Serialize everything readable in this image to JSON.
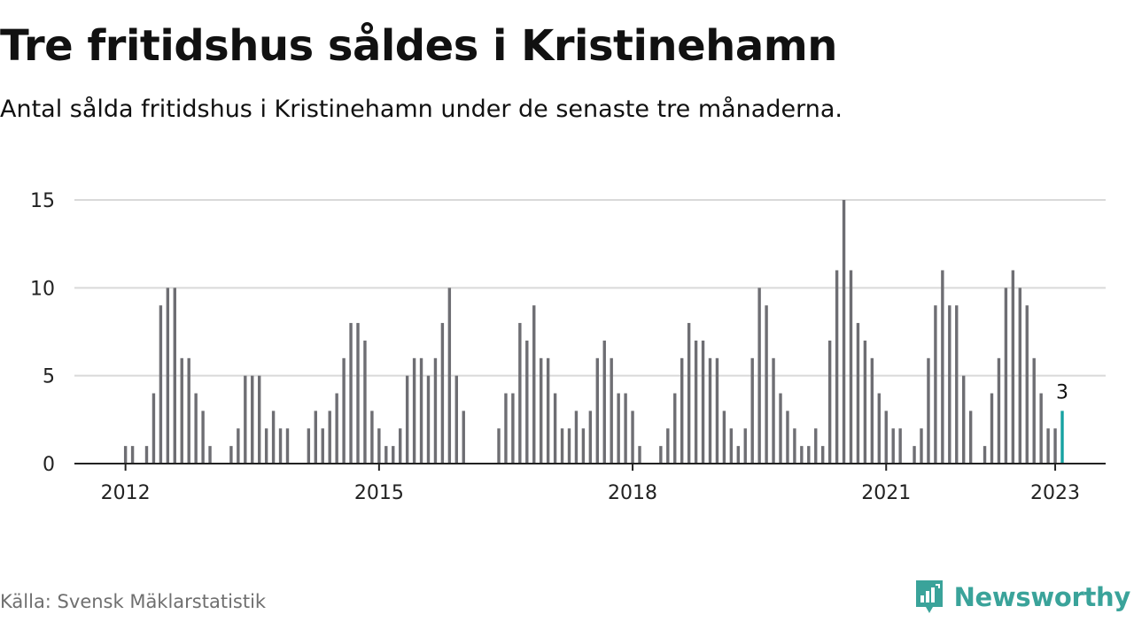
{
  "header": {
    "title": "Tre fritidshus såldes i Kristinehamn",
    "subtitle": "Antal sålda fritidshus i Kristinehamn under de senaste tre månaderna."
  },
  "footer": {
    "source": "Källa: Svensk Mäklarstatistik",
    "brand": "Newsworthy"
  },
  "colors": {
    "bar": "#6e6e73",
    "highlight": "#17a2a2",
    "grid": "#d9d9d9",
    "axis": "#222222",
    "brand": "#3aa39a"
  },
  "chart_data": {
    "type": "bar",
    "title": "Tre fritidshus såldes i Kristinehamn",
    "subtitle": "Antal sålda fritidshus i Kristinehamn under de senaste tre månaderna.",
    "xlabel": "",
    "ylabel": "",
    "x_start": "2011-12",
    "frequency": "monthly",
    "ylim": [
      0,
      15
    ],
    "yticks": [
      0,
      5,
      10,
      15
    ],
    "xticks": [
      {
        "label": "2012",
        "date": "2012-01"
      },
      {
        "label": "2015",
        "date": "2015-01"
      },
      {
        "label": "2018",
        "date": "2018-01"
      },
      {
        "label": "2021",
        "date": "2021-01"
      },
      {
        "label": "2023",
        "date": "2023-01"
      }
    ],
    "grid": true,
    "highlight_last": true,
    "last_value_label": "3",
    "values": [
      0,
      1,
      1,
      0,
      1,
      4,
      9,
      10,
      10,
      6,
      6,
      4,
      3,
      1,
      0,
      0,
      1,
      2,
      5,
      5,
      5,
      2,
      3,
      2,
      2,
      0,
      0,
      2,
      3,
      2,
      3,
      4,
      6,
      8,
      8,
      7,
      3,
      2,
      1,
      1,
      2,
      5,
      6,
      6,
      5,
      6,
      8,
      10,
      5,
      3,
      0,
      0,
      0,
      0,
      2,
      4,
      4,
      8,
      7,
      9,
      6,
      6,
      4,
      2,
      2,
      3,
      2,
      3,
      6,
      7,
      6,
      4,
      4,
      3,
      1,
      0,
      0,
      1,
      2,
      4,
      6,
      8,
      7,
      7,
      6,
      6,
      3,
      2,
      1,
      2,
      6,
      10,
      9,
      6,
      4,
      3,
      2,
      1,
      1,
      2,
      1,
      7,
      11,
      15,
      11,
      8,
      7,
      6,
      4,
      3,
      2,
      2,
      0,
      1,
      2,
      6,
      9,
      11,
      9,
      9,
      5,
      3,
      0,
      1,
      4,
      6,
      10,
      11,
      10,
      9,
      6,
      4,
      2,
      2,
      3
    ]
  }
}
